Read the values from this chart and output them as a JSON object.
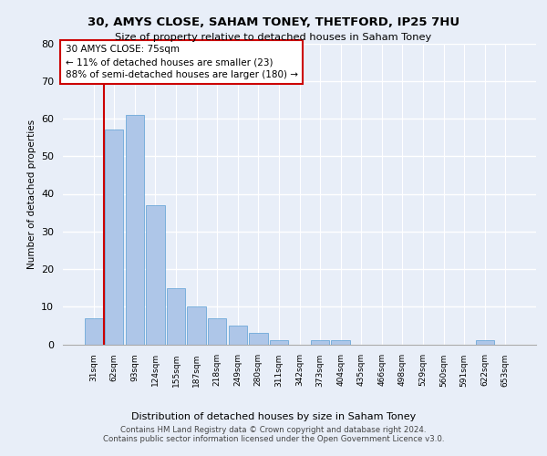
{
  "title1": "30, AMYS CLOSE, SAHAM TONEY, THETFORD, IP25 7HU",
  "title2": "Size of property relative to detached houses in Saham Toney",
  "xlabel": "Distribution of detached houses by size in Saham Toney",
  "ylabel": "Number of detached properties",
  "categories": [
    "31sqm",
    "62sqm",
    "93sqm",
    "124sqm",
    "155sqm",
    "187sqm",
    "218sqm",
    "249sqm",
    "280sqm",
    "311sqm",
    "342sqm",
    "373sqm",
    "404sqm",
    "435sqm",
    "466sqm",
    "498sqm",
    "529sqm",
    "560sqm",
    "591sqm",
    "622sqm",
    "653sqm"
  ],
  "values": [
    7,
    57,
    61,
    37,
    15,
    10,
    7,
    5,
    3,
    1,
    0,
    1,
    1,
    0,
    0,
    0,
    0,
    0,
    0,
    1,
    0
  ],
  "bar_color": "#aec6e8",
  "bar_edge_color": "#5a9fd4",
  "bg_color": "#e8eef8",
  "plot_bg_color": "#e8eef8",
  "grid_color": "#ffffff",
  "vline_x_index": 1,
  "vline_color": "#cc0000",
  "ylim": [
    0,
    80
  ],
  "yticks": [
    0,
    10,
    20,
    30,
    40,
    50,
    60,
    70,
    80
  ],
  "annotation_text": "30 AMYS CLOSE: 75sqm\n← 11% of detached houses are smaller (23)\n88% of semi-detached houses are larger (180) →",
  "annotation_box_color": "#ffffff",
  "annotation_box_edge": "#cc0000",
  "footer1": "Contains HM Land Registry data © Crown copyright and database right 2024.",
  "footer2": "Contains public sector information licensed under the Open Government Licence v3.0."
}
